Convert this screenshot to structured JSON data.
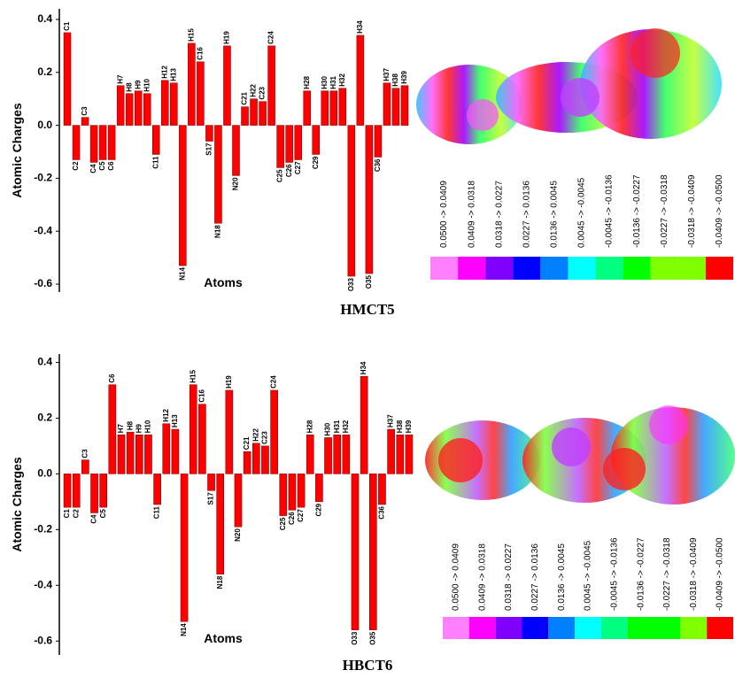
{
  "chart_data": [
    {
      "type": "bar",
      "caption": "HMCT5",
      "x_label": "Atoms",
      "y_label": "Atomic Charges",
      "color": "#ff0000",
      "categories": [
        "C1",
        "C2",
        "C3",
        "C4",
        "C5",
        "C6",
        "H7",
        "H8",
        "H9",
        "H10",
        "C11",
        "H12",
        "H13",
        "N14",
        "H15",
        "C16",
        "S17",
        "N18",
        "H19",
        "N20",
        "C21",
        "H22",
        "C23",
        "C24",
        "C25",
        "C26",
        "C27",
        "H28",
        "C29",
        "H30",
        "H31",
        "H32",
        "O33",
        "H34",
        "O35",
        "C36",
        "H37",
        "H38",
        "H39"
      ],
      "values": [
        0.35,
        -0.13,
        0.03,
        -0.14,
        -0.13,
        -0.13,
        0.15,
        0.12,
        0.13,
        0.12,
        -0.11,
        0.17,
        0.16,
        -0.53,
        0.31,
        0.24,
        -0.06,
        -0.37,
        0.3,
        -0.19,
        0.07,
        0.1,
        0.09,
        0.3,
        -0.16,
        -0.14,
        -0.13,
        0.13,
        -0.11,
        0.13,
        0.13,
        0.14,
        -0.57,
        0.34,
        -0.56,
        -0.12,
        0.16,
        0.14,
        0.15
      ],
      "ylim": [
        -0.63,
        0.44
      ],
      "yticks": [
        0.4,
        0.2,
        {
          "value": 0,
          "label": "0.0"
        },
        -0.2,
        -0.4,
        -0.6
      ],
      "color_scale": [
        {
          "label": "0.0500 -> 0.0409",
          "color": "#ff80ff"
        },
        {
          "label": "0.0409 -> 0.0318",
          "color": "#ff00ff"
        },
        {
          "label": "0.0318 -> 0.0227",
          "color": "#8000ff"
        },
        {
          "label": "0.0227 -> 0.0136",
          "color": "#0000ff"
        },
        {
          "label": "0.0136 -> 0.0045",
          "color": "#0080ff"
        },
        {
          "label": "0.0045 -> -0.0045",
          "color": "#00ffff"
        },
        {
          "label": "-0.0045 -> -0.0136",
          "color": "#00ff80"
        },
        {
          "label": "-0.0136 -> -0.0227",
          "color": "#00ff00"
        },
        {
          "label": "-0.0227 -> -0.0318",
          "color": "#80ff00"
        },
        {
          "label": "-0.0318 -> -0.0409",
          "color": "#80ff00"
        },
        {
          "label": "-0.0409 -> -0.0500",
          "color": "#ff0000"
        }
      ]
    },
    {
      "type": "bar",
      "caption": "HBCT6",
      "x_label": "Atoms",
      "y_label": "Atomic Charges",
      "color": "#ff0000",
      "categories": [
        "C1",
        "C2",
        "C3",
        "C4",
        "C5",
        "C6",
        "H7",
        "H8",
        "H9",
        "H10",
        "C11",
        "H12",
        "H13",
        "N14",
        "H15",
        "C16",
        "S17",
        "N18",
        "H19",
        "N20",
        "C21",
        "H22",
        "C23",
        "C24",
        "C25",
        "C26",
        "C27",
        "H28",
        "C29",
        "H30",
        "H31",
        "H32",
        "O33",
        "H34",
        "O35",
        "C36",
        "H37",
        "H38",
        "H39"
      ],
      "values": [
        -0.12,
        -0.12,
        0.05,
        -0.14,
        -0.12,
        0.32,
        0.14,
        0.15,
        0.14,
        0.14,
        -0.11,
        0.18,
        0.16,
        -0.53,
        0.32,
        0.25,
        -0.06,
        -0.36,
        0.3,
        -0.19,
        0.08,
        0.11,
        0.1,
        0.3,
        -0.15,
        -0.13,
        -0.12,
        0.14,
        -0.1,
        0.13,
        0.14,
        0.14,
        -0.56,
        0.35,
        -0.56,
        -0.11,
        0.16,
        0.14,
        0.14
      ],
      "ylim": [
        -0.65,
        0.43
      ],
      "yticks": [
        0.4,
        0.2,
        {
          "value": 0,
          "label": "0.0"
        },
        -0.2,
        -0.4,
        -0.6
      ],
      "color_scale": [
        {
          "label": "0.0500 ->  0.0409",
          "color": "#ff80ff"
        },
        {
          "label": "0.0409 ->  0.0318",
          "color": "#ff00ff"
        },
        {
          "label": "0.0318 ->  0.0227",
          "color": "#8000ff"
        },
        {
          "label": "0.0227 ->  0.0136",
          "color": "#0000ff"
        },
        {
          "label": "0.0136 ->  0.0045",
          "color": "#0080ff"
        },
        {
          "label": "0.0045 -> -0.0045",
          "color": "#00ffff"
        },
        {
          "label": "-0.0045 -> -0.0136",
          "color": "#00ff80"
        },
        {
          "label": "-0.0136 -> -0.0227",
          "color": "#00ff00"
        },
        {
          "label": "-0.0227 -> -0.0318",
          "color": "#00ff00"
        },
        {
          "label": "-0.0318 -> -0.0409",
          "color": "#80ff00"
        },
        {
          "label": "-0.0409 -> -0.0500",
          "color": "#ff0000"
        }
      ]
    }
  ]
}
